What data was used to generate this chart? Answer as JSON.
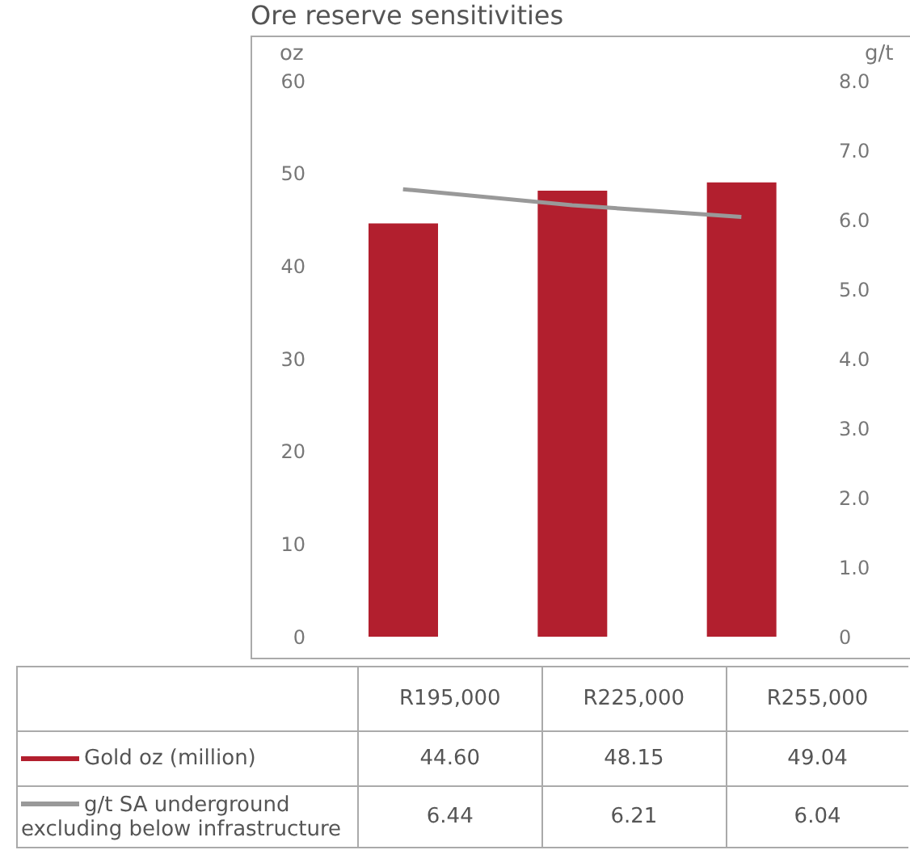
{
  "chart_data": {
    "type": "bar",
    "title": "Ore reserve sensitivities",
    "ylabel": "oz",
    "y2label": "g/t",
    "categories": [
      "R195,000",
      "R225,000",
      "R255,000"
    ],
    "series": [
      {
        "name": "Gold oz (million)",
        "color": "#b21f2e",
        "values": [
          44.6,
          48.15,
          49.04
        ],
        "value_labels": [
          "44.60",
          "48.15",
          "49.04"
        ]
      },
      {
        "name": "g/t SA underground excluding below infrastructure",
        "type": "line",
        "axis": "y2",
        "color": "#999999",
        "values": [
          6.44,
          6.21,
          6.04
        ],
        "value_labels": [
          "6.44",
          "6.21",
          "6.04"
        ]
      }
    ],
    "ylim": [
      0,
      60
    ],
    "yticks": [
      0,
      10,
      20,
      30,
      40,
      50,
      60
    ],
    "y2lim": [
      0,
      8
    ],
    "y2ticks": [
      0,
      {
        "value": 1,
        "label": "1.0"
      },
      {
        "value": 2,
        "label": "2.0"
      },
      {
        "value": 3,
        "label": "3.0"
      },
      {
        "value": 4,
        "label": "4.0"
      },
      {
        "value": 5,
        "label": "5.0"
      },
      {
        "value": 6,
        "label": "6.0"
      },
      {
        "value": 7,
        "label": "7.0"
      },
      {
        "value": 8,
        "label": "8.0"
      }
    ],
    "tick_labels": "y",
    "legend": "bottom",
    "marker": "none"
  }
}
